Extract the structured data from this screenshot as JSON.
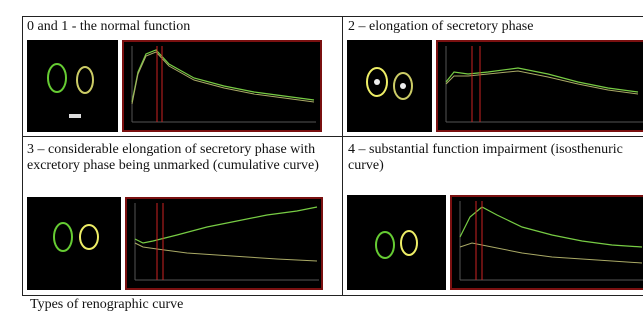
{
  "panels": [
    {
      "caption": "0 and 1 - the normal function"
    },
    {
      "caption": "2 – elongation of secretory phase"
    },
    {
      "caption": "3 – considerable elongation of secretory phase with excretory phase being unmarked (cumulative curve)"
    },
    {
      "caption": "4 – substantial function impairment (isosthenuric curve)"
    }
  ],
  "figure_caption": "Types of renographic curve"
}
